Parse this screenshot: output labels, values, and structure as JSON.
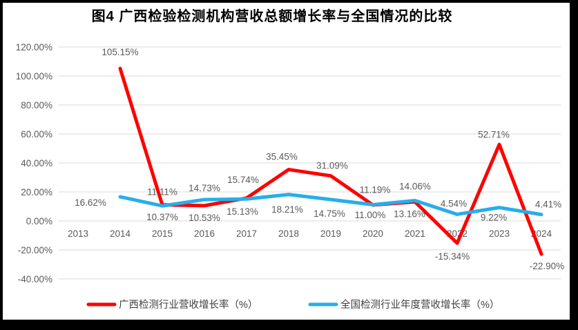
{
  "title": "图4 广西检验检测机构营收总额增长率与全国情况的比较",
  "chart_data": {
    "type": "line",
    "title": "图4 广西检验检测机构营收总额增长率与全国情况的比较",
    "categories": [
      "2013",
      "2014",
      "2015",
      "2016",
      "2017",
      "2018",
      "2019",
      "2020",
      "2021",
      "2022",
      "2023",
      "2024"
    ],
    "series": [
      {
        "name": "广西检测行业营收增长率（%）",
        "color": "#FF0000",
        "values": [
          null,
          105.15,
          11.11,
          10.53,
          15.74,
          35.45,
          31.09,
          11.0,
          13.16,
          -15.34,
          52.71,
          -22.9
        ],
        "label_offsets": [
          null,
          [
            0,
            -19
          ],
          [
            0,
            -14
          ],
          [
            0,
            22
          ],
          [
            -5,
            -22
          ],
          [
            -10,
            -14
          ],
          [
            2,
            -10
          ],
          [
            -4,
            19
          ],
          [
            -8,
            22
          ],
          [
            -7,
            24
          ],
          [
            -8,
            -10
          ],
          [
            8,
            22
          ]
        ]
      },
      {
        "name": "全国检测行业年度营收增长率（%）",
        "color": "#27AEEA",
        "values": [
          null,
          16.62,
          10.37,
          14.73,
          15.13,
          18.21,
          14.75,
          11.19,
          14.06,
          4.54,
          9.22,
          4.41
        ],
        "label_offsets": [
          null,
          [
            -43,
            13
          ],
          [
            0,
            21
          ],
          [
            0,
            -12
          ],
          [
            -6,
            23
          ],
          [
            -2,
            26
          ],
          [
            -2,
            25
          ],
          [
            3,
            -17
          ],
          [
            0,
            -16
          ],
          [
            -5,
            -11
          ],
          [
            -8,
            19
          ],
          [
            10,
            -10
          ]
        ]
      }
    ],
    "ylim": [
      -40,
      120
    ],
    "y_ticks": [
      120,
      100,
      80,
      60,
      40,
      20,
      0,
      -20,
      -40
    ],
    "y_tick_format": "0.00%",
    "value_format": "0.00%",
    "grid": true,
    "grid_color": "#D9D9D9",
    "label_color": "#595959",
    "legend_position": "bottom",
    "frame_color": "#000000",
    "background_color": "#FFFFFF"
  }
}
